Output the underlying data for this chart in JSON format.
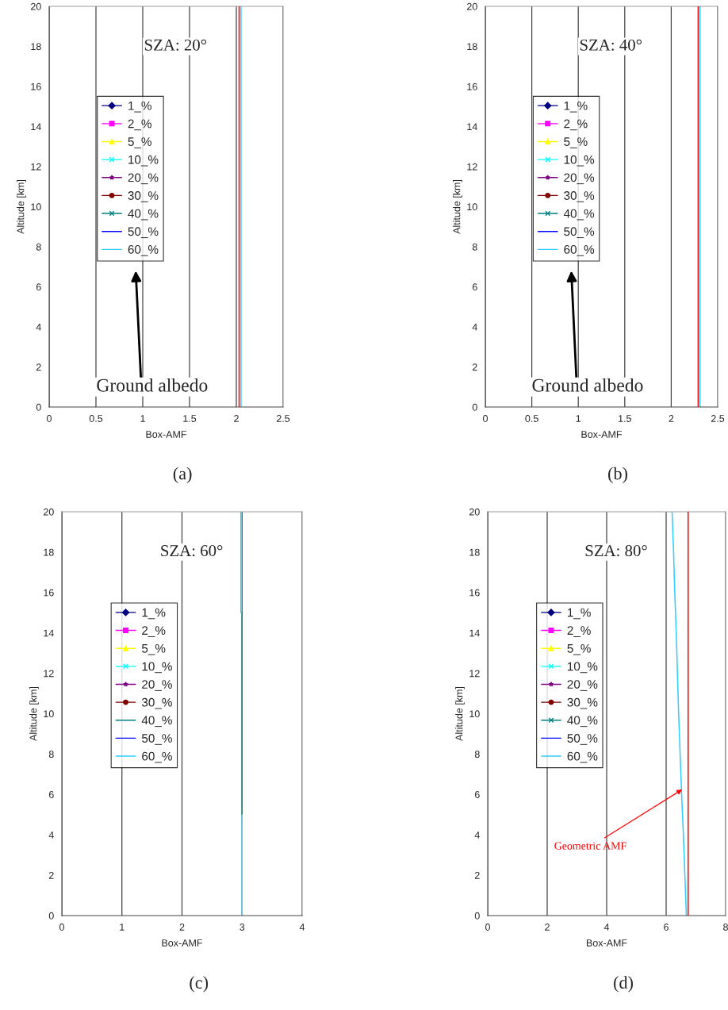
{
  "chart_data": [
    {
      "type": "line",
      "title": "(a)",
      "subtitle": "SZA: 20°",
      "xlabel": "Box-AMF",
      "ylabel": "Altitude [km]",
      "xlim": [
        0,
        2.5
      ],
      "xticks": [
        0,
        0.5,
        1,
        1.5,
        2,
        2.5
      ],
      "ylim": [
        0,
        20
      ],
      "yticks": [
        0,
        2,
        4,
        6,
        8,
        10,
        12,
        14,
        16,
        18,
        20
      ],
      "grid": "x",
      "legend": "left",
      "annotations": [
        "Ground albedo"
      ],
      "ref_lines": [
        {
          "axis": "x",
          "value": 2.03,
          "color": "#ff0000"
        }
      ],
      "series": [
        {
          "name": "1_%",
          "color": "#000080",
          "marker": "diamond"
        },
        {
          "name": "2_%",
          "color": "#ff00ff",
          "marker": "square"
        },
        {
          "name": "5_%",
          "color": "#ffff00",
          "marker": "triangle"
        },
        {
          "name": "10_%",
          "color": "#00ffff",
          "marker": "cross"
        },
        {
          "name": "20_%",
          "color": "#800080",
          "marker": "star"
        },
        {
          "name": "30_%",
          "color": "#800000",
          "marker": "circle"
        },
        {
          "name": "40_%",
          "color": "#008080",
          "marker": "cross"
        },
        {
          "name": "50_%",
          "color": "#0000ff",
          "marker": "none"
        },
        {
          "name": "60_%",
          "color": "#33ccff",
          "marker": "none",
          "x": [
            2.05,
            2.05,
            2.05,
            2.05,
            2.05
          ],
          "values": [
            0,
            5,
            10,
            15,
            20
          ]
        }
      ]
    },
    {
      "type": "line",
      "title": "(b)",
      "subtitle": "SZA: 40°",
      "xlabel": "Box-AMF",
      "ylabel": "Altitude [km]",
      "xlim": [
        0,
        2.5
      ],
      "xticks": [
        0,
        0.5,
        1,
        1.5,
        2,
        2.5
      ],
      "ylim": [
        0,
        20
      ],
      "yticks": [
        0,
        2,
        4,
        6,
        8,
        10,
        12,
        14,
        16,
        18,
        20
      ],
      "grid": "x",
      "legend": "left",
      "annotations": [
        "Ground albedo"
      ],
      "ref_lines": [
        {
          "axis": "x",
          "value": 2.29,
          "color": "#ff0000"
        }
      ],
      "series": [
        {
          "name": "1_%",
          "color": "#000080",
          "marker": "diamond"
        },
        {
          "name": "2_%",
          "color": "#ff00ff",
          "marker": "square"
        },
        {
          "name": "5_%",
          "color": "#ffff00",
          "marker": "triangle"
        },
        {
          "name": "10_%",
          "color": "#00ffff",
          "marker": "cross"
        },
        {
          "name": "20_%",
          "color": "#800080",
          "marker": "star"
        },
        {
          "name": "30_%",
          "color": "#800000",
          "marker": "circle"
        },
        {
          "name": "40_%",
          "color": "#008080",
          "marker": "cross"
        },
        {
          "name": "50_%",
          "color": "#0000ff",
          "marker": "none"
        },
        {
          "name": "60_%",
          "color": "#33ccff",
          "marker": "none",
          "x": [
            2.31,
            2.31,
            2.31,
            2.31,
            2.31
          ],
          "values": [
            0,
            5,
            10,
            15,
            20
          ]
        }
      ]
    },
    {
      "type": "line",
      "title": "(c)",
      "subtitle": "SZA: 60°",
      "xlabel": "Box-AMF",
      "ylabel": "Altitude [km]",
      "xlim": [
        0,
        4
      ],
      "xticks": [
        0,
        1,
        2,
        3,
        4
      ],
      "ylim": [
        0,
        20
      ],
      "yticks": [
        0,
        2,
        4,
        6,
        8,
        10,
        12,
        14,
        16,
        18,
        20
      ],
      "grid": "x",
      "legend": "left",
      "series": [
        {
          "name": "1_%",
          "color": "#000080",
          "marker": "diamond"
        },
        {
          "name": "2_%",
          "color": "#ff00ff",
          "marker": "square"
        },
        {
          "name": "5_%",
          "color": "#ffff00",
          "marker": "triangle"
        },
        {
          "name": "10_%",
          "color": "#00ffff",
          "marker": "cross"
        },
        {
          "name": "20_%",
          "color": "#800080",
          "marker": "star"
        },
        {
          "name": "30_%",
          "color": "#800000",
          "marker": "circle"
        },
        {
          "name": "40_%",
          "color": "#008080",
          "marker": "none",
          "x": [
            3.0,
            3.0,
            3.0
          ],
          "values": [
            5,
            10,
            15
          ]
        },
        {
          "name": "50_%",
          "color": "#0000ff",
          "marker": "none"
        },
        {
          "name": "60_%",
          "color": "#33ccff",
          "marker": "none",
          "x": [
            3.0,
            3.0,
            null,
            2.98,
            2.98
          ],
          "values": [
            0,
            5,
            null,
            15,
            20
          ]
        }
      ]
    },
    {
      "type": "line",
      "title": "(d)",
      "subtitle": "SZA: 80°",
      "xlabel": "Box-AMF",
      "ylabel": "Altitude [km]",
      "xlim": [
        0,
        8
      ],
      "xticks": [
        0,
        2,
        4,
        6,
        8
      ],
      "ylim": [
        0,
        20
      ],
      "yticks": [
        0,
        2,
        4,
        6,
        8,
        10,
        12,
        14,
        16,
        18,
        20
      ],
      "grid": "x",
      "legend": "left",
      "annotations": [
        {
          "text": "Geometric AMF",
          "x": 6.6,
          "y": 6.3
        }
      ],
      "ref_lines": [
        {
          "axis": "x",
          "value": 6.74,
          "color": "#ff0000"
        }
      ],
      "series": [
        {
          "name": "1_%",
          "color": "#000080",
          "marker": "diamond"
        },
        {
          "name": "2_%",
          "color": "#ff00ff",
          "marker": "square"
        },
        {
          "name": "5_%",
          "color": "#ffff00",
          "marker": "triangle"
        },
        {
          "name": "10_%",
          "color": "#00ffff",
          "marker": "cross"
        },
        {
          "name": "20_%",
          "color": "#800080",
          "marker": "star"
        },
        {
          "name": "30_%",
          "color": "#800000",
          "marker": "circle"
        },
        {
          "name": "40_%",
          "color": "#008080",
          "marker": "cross"
        },
        {
          "name": "50_%",
          "color": "#0000ff",
          "marker": "none"
        },
        {
          "name": "60_%",
          "color": "#33ccff",
          "marker": "none",
          "x": [
            6.68,
            6.63,
            6.58,
            6.52,
            6.47,
            6.42,
            6.38,
            6.34,
            6.29,
            6.25,
            6.2
          ],
          "values": [
            0,
            2,
            4,
            6,
            8,
            10,
            12,
            14,
            16,
            18,
            20
          ]
        }
      ]
    }
  ]
}
